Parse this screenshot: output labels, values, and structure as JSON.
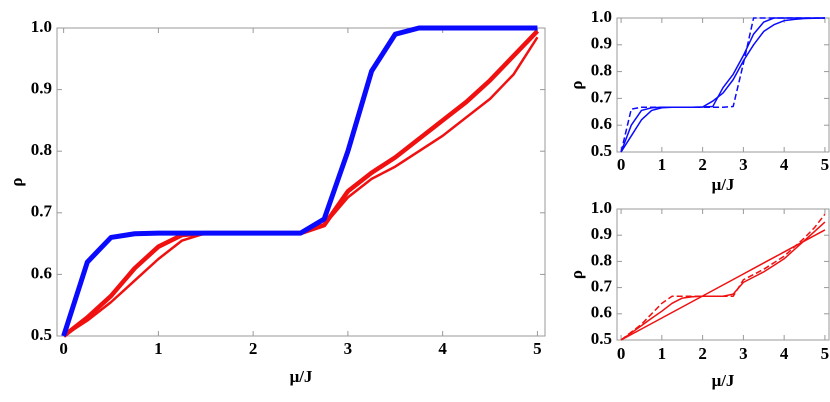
{
  "chart_data": [
    {
      "type": "line",
      "x_label": "μ/J",
      "y_label": "ρ",
      "x": [
        0,
        0.25,
        0.5,
        0.75,
        1,
        1.25,
        1.5,
        1.75,
        2,
        2.25,
        2.5,
        2.75,
        3,
        3.25,
        3.5,
        3.75,
        4,
        4.25,
        4.5,
        4.75,
        5
      ],
      "xlim": [
        -0.07,
        5.08
      ],
      "ylim": [
        0.5,
        1.0
      ],
      "xticks": [
        0,
        1,
        2,
        3,
        4,
        5
      ],
      "yticks": [
        0.5,
        0.6,
        0.7,
        0.8,
        0.9,
        {
          "value": 1,
          "label": "1.0"
        }
      ],
      "series": [
        {
          "color": "#f01010",
          "width": 4.5,
          "dash": false,
          "values": [
            0.5,
            0.53,
            0.565,
            0.61,
            0.645,
            0.664,
            0.667,
            0.667,
            0.667,
            0.667,
            0.667,
            0.68,
            0.735,
            0.765,
            0.79,
            0.82,
            0.85,
            0.88,
            0.915,
            0.955,
            0.995
          ]
        },
        {
          "color": "#f01010",
          "width": 2.5,
          "dash": false,
          "values": [
            0.5,
            0.525,
            0.555,
            0.59,
            0.625,
            0.655,
            0.667,
            0.667,
            0.667,
            0.667,
            0.667,
            0.68,
            0.725,
            0.755,
            0.775,
            0.8,
            0.825,
            0.855,
            0.885,
            0.925,
            0.985
          ]
        },
        {
          "color": "#0a0aff",
          "width": 5,
          "dash": false,
          "values": [
            0.5,
            0.62,
            0.66,
            0.666,
            0.667,
            0.667,
            0.667,
            0.667,
            0.667,
            0.667,
            0.667,
            0.69,
            0.8,
            0.93,
            0.99,
            1,
            1,
            1,
            1,
            1,
            1
          ]
        }
      ]
    },
    {
      "type": "line",
      "x_label": "μ/J",
      "y_label": "ρ",
      "x": [
        0,
        0.25,
        0.5,
        0.75,
        1,
        1.25,
        1.5,
        1.75,
        2,
        2.25,
        2.5,
        2.75,
        3,
        3.25,
        3.5,
        3.75,
        4,
        4.25,
        4.5,
        4.75,
        5
      ],
      "xlim": [
        -0.1,
        5.1
      ],
      "ylim": [
        0.5,
        1.0
      ],
      "xticks": [
        0,
        1,
        2,
        3,
        4,
        5
      ],
      "yticks": [
        0.5,
        0.6,
        0.7,
        0.8,
        0.9,
        {
          "value": 1,
          "label": "1.0"
        }
      ],
      "series": [
        {
          "color": "#0a0aff",
          "width": 1.5,
          "dash": true,
          "values": [
            0.5,
            0.66,
            0.667,
            0.667,
            0.667,
            0.667,
            0.667,
            0.667,
            0.667,
            0.667,
            0.667,
            0.67,
            0.83,
            1,
            1,
            1,
            1,
            1,
            1,
            1,
            1
          ]
        },
        {
          "color": "#0a0aff",
          "width": 1.5,
          "dash": false,
          "values": [
            0.5,
            0.6,
            0.655,
            0.665,
            0.667,
            0.667,
            0.667,
            0.667,
            0.668,
            0.67,
            0.74,
            0.79,
            0.86,
            0.94,
            0.985,
            1,
            1,
            1,
            1,
            1,
            1
          ]
        },
        {
          "color": "#0a0aff",
          "width": 1.5,
          "dash": false,
          "values": [
            0.5,
            0.56,
            0.62,
            0.655,
            0.665,
            0.667,
            0.667,
            0.667,
            0.668,
            0.69,
            0.72,
            0.77,
            0.84,
            0.9,
            0.95,
            0.975,
            0.99,
            0.995,
            0.998,
            0.999,
            1
          ]
        }
      ]
    },
    {
      "type": "line",
      "x_label": "μ/J",
      "y_label": "ρ",
      "x": [
        0,
        0.25,
        0.5,
        0.75,
        1,
        1.25,
        1.5,
        1.75,
        2,
        2.25,
        2.5,
        2.75,
        3,
        3.25,
        3.5,
        3.75,
        4,
        4.25,
        4.5,
        4.75,
        5
      ],
      "xlim": [
        -0.1,
        5.1
      ],
      "ylim": [
        0.5,
        1.0
      ],
      "xticks": [
        0,
        1,
        2,
        3,
        4,
        5
      ],
      "yticks": [
        0.5,
        0.6,
        0.7,
        0.8,
        0.9,
        {
          "value": 1,
          "label": "1.0"
        }
      ],
      "series": [
        {
          "color": "#f01010",
          "width": 1.5,
          "dash": true,
          "values": [
            0.5,
            0.53,
            0.56,
            0.6,
            0.64,
            0.667,
            0.667,
            0.667,
            0.667,
            0.667,
            0.667,
            0.667,
            0.73,
            0.75,
            0.77,
            0.795,
            0.82,
            0.855,
            0.89,
            0.93,
            0.98
          ]
        },
        {
          "color": "#f01010",
          "width": 1.5,
          "dash": false,
          "values": [
            0.5,
            0.527,
            0.555,
            0.583,
            0.61,
            0.64,
            0.66,
            0.665,
            0.667,
            0.667,
            0.667,
            0.675,
            0.72,
            0.74,
            0.76,
            0.785,
            0.81,
            0.845,
            0.88,
            0.915,
            0.95
          ]
        },
        {
          "color": "#f01010",
          "width": 1.5,
          "dash": false,
          "values": [
            0.5,
            0.521,
            0.542,
            0.563,
            0.584,
            0.605,
            0.626,
            0.647,
            0.668,
            0.689,
            0.71,
            0.731,
            0.752,
            0.773,
            0.794,
            0.815,
            0.836,
            0.857,
            0.878,
            0.899,
            0.92
          ]
        }
      ]
    }
  ]
}
